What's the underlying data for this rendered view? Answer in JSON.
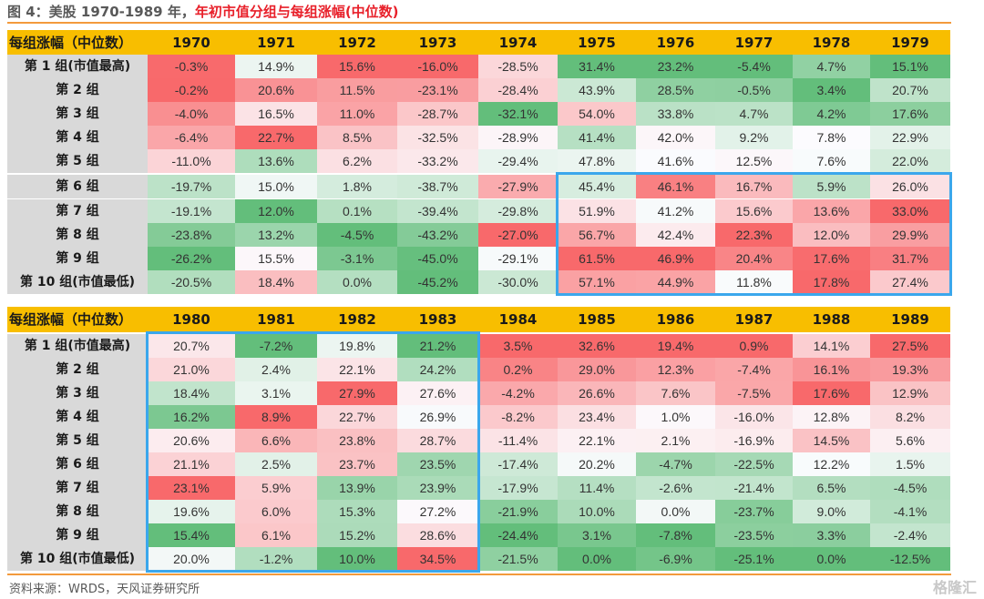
{
  "title": {
    "prefix": "图 4：美股 1970-1989 年，",
    "highlight": "年初市值分组与每组涨幅(中位数)"
  },
  "source": "资料来源：WRDS，天风证券研究所",
  "watermark": "格隆汇",
  "colors": {
    "header": "#F8BE00",
    "label_bg": "#D9D9D9",
    "red": "#F8696B",
    "mid": "#FCFCFF",
    "green": "#63BE7B",
    "highlight_box": "#3BA7EC",
    "rule": "#F39A3C"
  },
  "chart_data": {
    "type": "heatmap",
    "title": "美股 1970-1989 年，年初市值分组与每组涨幅(中位数)",
    "row_header": "每组涨幅（中位数）",
    "rows": [
      "第 1 组(市值最高)",
      "第 2 组",
      "第 3 组",
      "第 4 组",
      "第 5 组",
      "第 6 组",
      "第 7 组",
      "第 8 组",
      "第 9 组",
      "第 10 组(市值最低)"
    ],
    "color_scale": "per-column, min=green, median=white, max=red",
    "panels": [
      {
        "years": [
          "1970",
          "1971",
          "1972",
          "1973",
          "1974",
          "1975",
          "1976",
          "1977",
          "1978",
          "1979"
        ],
        "values": [
          [
            "-0.3%",
            "14.9%",
            "15.6%",
            "-16.0%",
            "-28.5%",
            "31.4%",
            "23.2%",
            "-5.4%",
            "4.7%",
            "15.1%"
          ],
          [
            "-0.2%",
            "20.6%",
            "11.5%",
            "-23.1%",
            "-28.4%",
            "43.9%",
            "28.5%",
            "-0.5%",
            "3.4%",
            "20.7%"
          ],
          [
            "-4.0%",
            "16.5%",
            "11.0%",
            "-28.7%",
            "-32.1%",
            "54.0%",
            "33.8%",
            "4.7%",
            "4.2%",
            "17.6%"
          ],
          [
            "-6.4%",
            "22.7%",
            "8.5%",
            "-32.5%",
            "-28.9%",
            "41.4%",
            "42.0%",
            "9.2%",
            "7.8%",
            "22.9%"
          ],
          [
            "-11.0%",
            "13.6%",
            "6.2%",
            "-33.2%",
            "-29.4%",
            "47.8%",
            "41.6%",
            "12.5%",
            "7.6%",
            "22.0%"
          ],
          [
            "-19.7%",
            "15.0%",
            "1.8%",
            "-38.7%",
            "-27.9%",
            "45.4%",
            "46.1%",
            "16.7%",
            "5.9%",
            "26.0%"
          ],
          [
            "-19.1%",
            "12.0%",
            "0.1%",
            "-39.4%",
            "-29.8%",
            "51.9%",
            "41.2%",
            "15.6%",
            "13.6%",
            "33.0%"
          ],
          [
            "-23.8%",
            "13.2%",
            "-4.5%",
            "-43.2%",
            "-27.0%",
            "56.7%",
            "42.4%",
            "22.3%",
            "12.0%",
            "29.9%"
          ],
          [
            "-26.2%",
            "15.5%",
            "-3.1%",
            "-45.0%",
            "-29.1%",
            "61.5%",
            "46.9%",
            "20.4%",
            "17.6%",
            "31.7%"
          ],
          [
            "-20.5%",
            "18.4%",
            "0.0%",
            "-45.2%",
            "-30.0%",
            "57.1%",
            "44.9%",
            "11.8%",
            "17.8%",
            "27.4%"
          ]
        ],
        "highlight": {
          "rows": [
            6,
            10
          ],
          "years": [
            "1975",
            "1979"
          ]
        }
      },
      {
        "years": [
          "1980",
          "1981",
          "1982",
          "1983",
          "1984",
          "1985",
          "1986",
          "1987",
          "1988",
          "1989"
        ],
        "values": [
          [
            "20.7%",
            "-7.2%",
            "19.8%",
            "21.2%",
            "3.5%",
            "32.6%",
            "19.4%",
            "0.9%",
            "14.1%",
            "27.5%"
          ],
          [
            "21.0%",
            "2.4%",
            "22.1%",
            "24.2%",
            "0.2%",
            "29.0%",
            "12.3%",
            "-7.4%",
            "16.1%",
            "19.3%"
          ],
          [
            "18.4%",
            "3.1%",
            "27.9%",
            "27.6%",
            "-4.2%",
            "26.6%",
            "7.6%",
            "-7.5%",
            "17.6%",
            "12.9%"
          ],
          [
            "16.2%",
            "8.9%",
            "22.7%",
            "26.9%",
            "-8.2%",
            "23.4%",
            "1.0%",
            "-16.0%",
            "12.8%",
            "8.2%"
          ],
          [
            "20.6%",
            "6.6%",
            "23.8%",
            "28.7%",
            "-11.4%",
            "22.1%",
            "2.1%",
            "-16.9%",
            "14.5%",
            "5.6%"
          ],
          [
            "21.1%",
            "2.5%",
            "23.7%",
            "23.5%",
            "-17.4%",
            "20.2%",
            "-4.7%",
            "-22.5%",
            "12.2%",
            "1.5%"
          ],
          [
            "23.1%",
            "5.9%",
            "13.9%",
            "23.9%",
            "-17.9%",
            "11.4%",
            "-2.6%",
            "-21.4%",
            "6.5%",
            "-4.5%"
          ],
          [
            "19.6%",
            "6.0%",
            "15.3%",
            "27.2%",
            "-21.9%",
            "10.0%",
            "0.0%",
            "-23.7%",
            "9.0%",
            "-4.1%"
          ],
          [
            "15.4%",
            "6.1%",
            "15.2%",
            "28.6%",
            "-24.4%",
            "3.1%",
            "-7.8%",
            "-23.5%",
            "3.3%",
            "-2.4%"
          ],
          [
            "20.0%",
            "-1.2%",
            "10.0%",
            "34.5%",
            "-21.5%",
            "0.0%",
            "-6.9%",
            "-25.1%",
            "0.0%",
            "-12.5%"
          ]
        ],
        "highlight": {
          "rows": [
            1,
            10
          ],
          "years": [
            "1980",
            "1983"
          ]
        }
      }
    ]
  }
}
